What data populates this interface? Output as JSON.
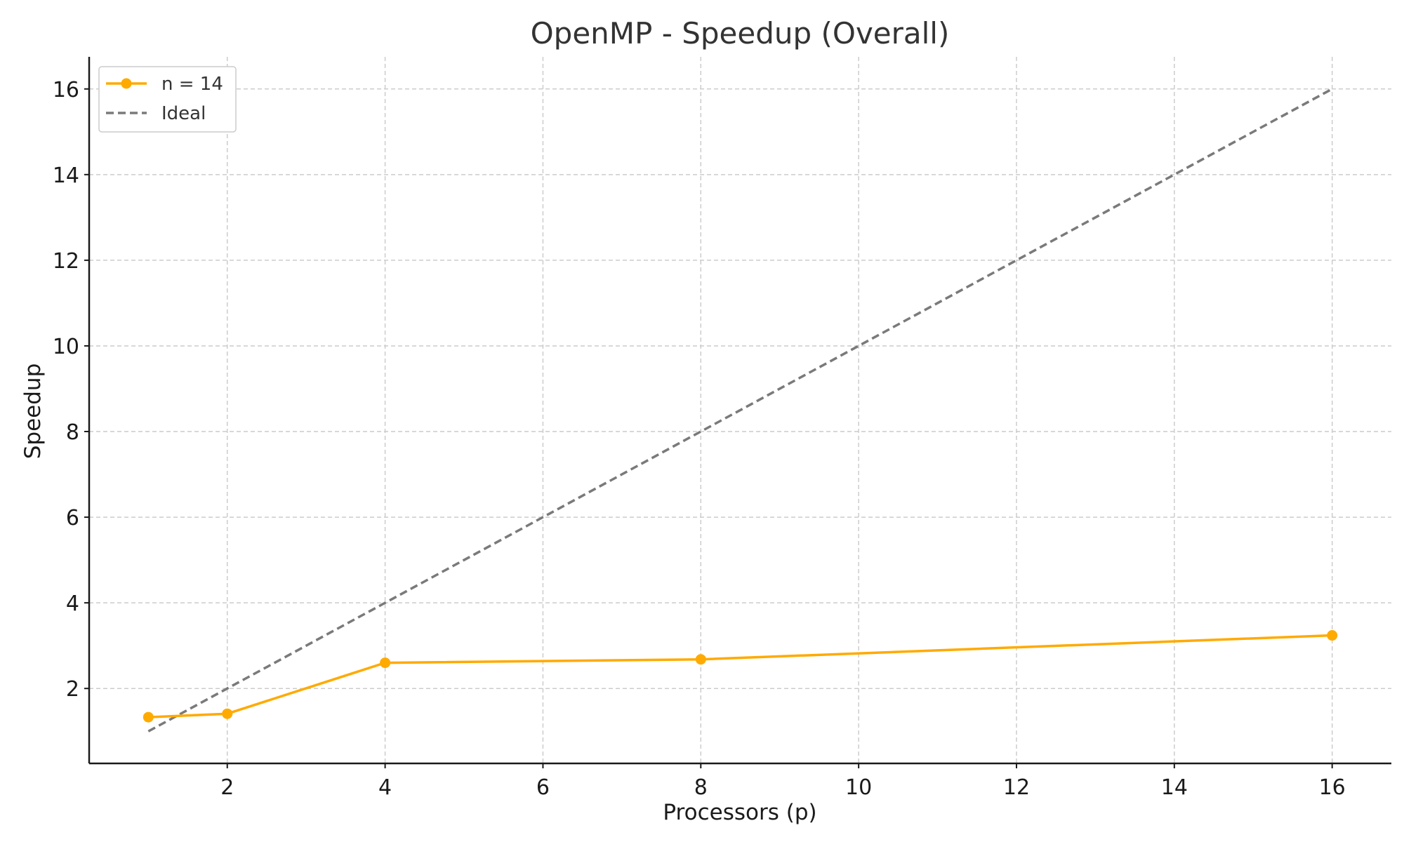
{
  "chart_data": {
    "type": "line",
    "title": "OpenMP - Speedup (Overall)",
    "xlabel": "Processors (p)",
    "ylabel": "Speedup",
    "xlim": [
      0.25,
      16.75
    ],
    "ylim": [
      0.25,
      16.75
    ],
    "xticks": [
      2,
      4,
      6,
      8,
      10,
      12,
      14,
      16
    ],
    "yticks": [
      2,
      4,
      6,
      8,
      10,
      12,
      14,
      16
    ],
    "grid": true,
    "legend_position": "top-left",
    "series": [
      {
        "name": "n = 14",
        "style": "solid-with-markers",
        "color": "#ffaa00",
        "x": [
          1,
          2,
          4,
          8,
          16
        ],
        "y": [
          1.33,
          1.41,
          2.6,
          2.68,
          3.24
        ]
      },
      {
        "name": "Ideal",
        "style": "dashed",
        "color": "#7a7a7a",
        "x": [
          1,
          2,
          4,
          8,
          16
        ],
        "y": [
          1,
          2,
          4,
          8,
          16
        ]
      }
    ]
  }
}
